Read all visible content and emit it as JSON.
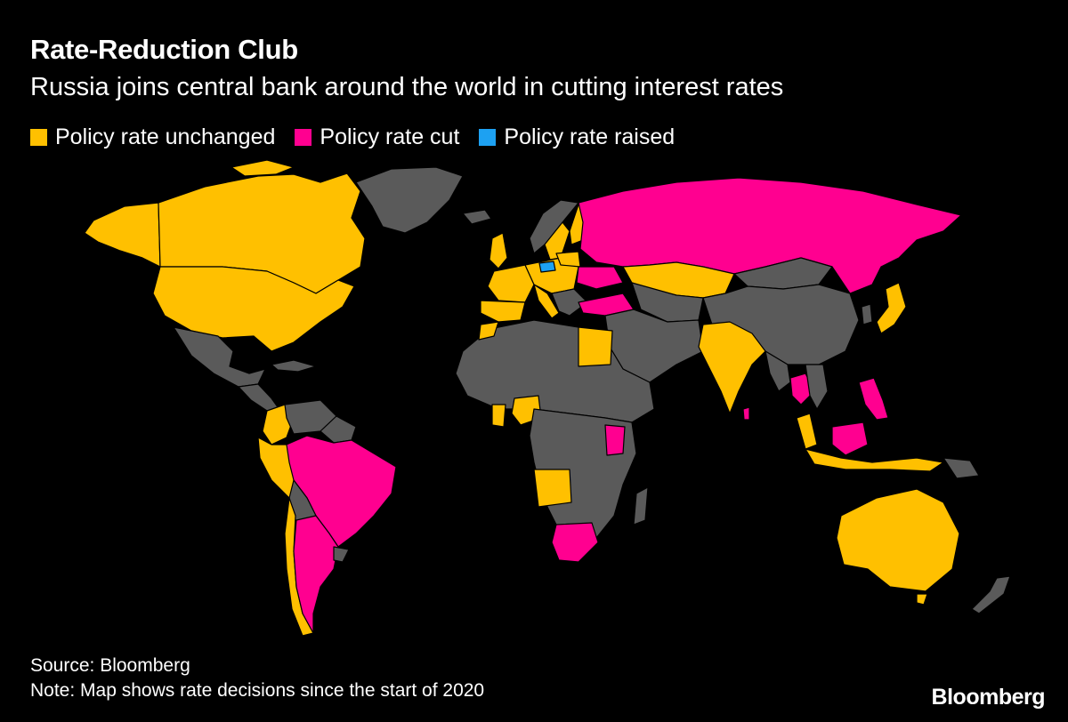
{
  "title": "Rate-Reduction Club",
  "subtitle": "Russia joins central bank around the world in cutting interest rates",
  "legend": [
    {
      "label": "Policy rate unchanged",
      "color": "#FFC000"
    },
    {
      "label": "Policy rate cut",
      "color": "#FF0090"
    },
    {
      "label": "Policy rate raised",
      "color": "#1DA1F2"
    }
  ],
  "colors": {
    "no_data": "#5a5a5a",
    "background": "#000000",
    "borders": "#000000"
  },
  "source": "Source: Bloomberg",
  "note": "Note: Map shows rate decisions since the start of 2020",
  "brand": "Bloomberg"
}
